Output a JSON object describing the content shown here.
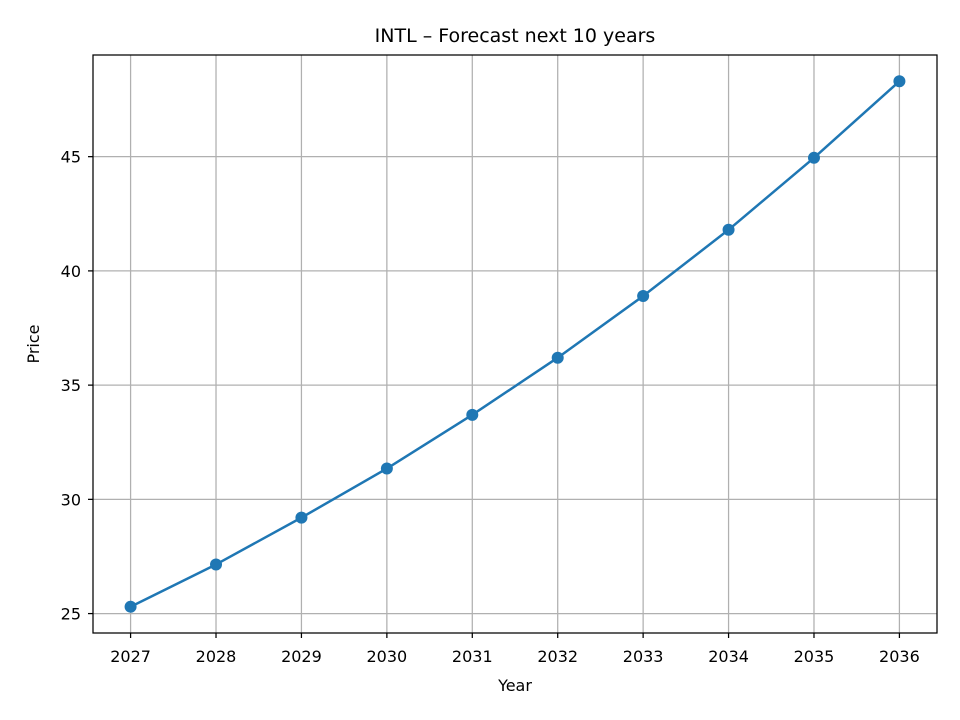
{
  "chart_data": {
    "type": "line",
    "title": "INTL – Forecast next 10 years",
    "xlabel": "Year",
    "ylabel": "Price",
    "x": [
      2027,
      2028,
      2029,
      2030,
      2031,
      2032,
      2033,
      2034,
      2035,
      2036
    ],
    "series": [
      {
        "name": "Price",
        "values": [
          25.3,
          27.15,
          29.2,
          31.35,
          33.7,
          36.2,
          38.9,
          41.8,
          44.95,
          48.3
        ]
      }
    ],
    "xlim": [
      2026.56,
      2036.44
    ],
    "ylim": [
      24.15,
      49.45
    ],
    "x_ticks": [
      "2027",
      "2028",
      "2029",
      "2030",
      "2031",
      "2032",
      "2033",
      "2034",
      "2035",
      "2036"
    ],
    "y_ticks": [
      "25",
      "30",
      "35",
      "40",
      "45"
    ],
    "grid": true,
    "line_color": "#1f77b4",
    "grid_color": "#b0b0b0",
    "marker": "circle"
  }
}
